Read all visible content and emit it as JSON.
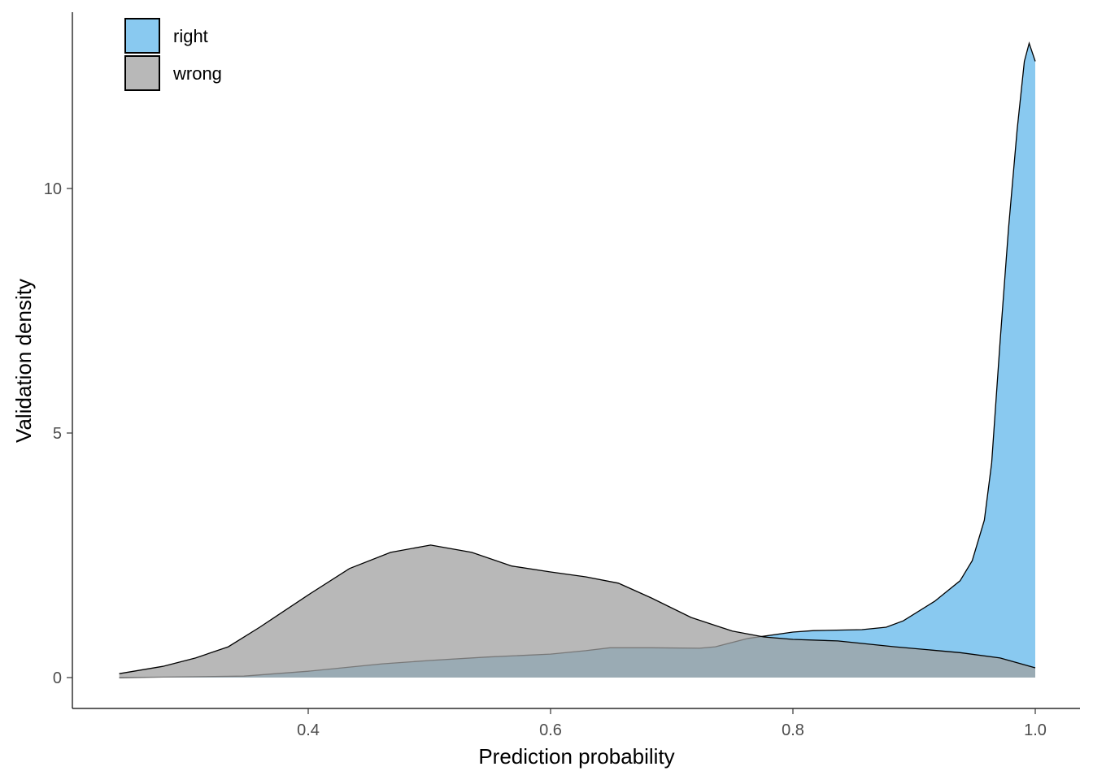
{
  "chart_data": {
    "type": "area",
    "title": "",
    "xlabel": "Prediction probability",
    "ylabel": "Validation density",
    "xlim": [
      0.21,
      1.02
    ],
    "ylim": [
      -0.63,
      13.6
    ],
    "x_ticks": [
      0.4,
      0.6,
      0.8,
      1.0
    ],
    "x_tick_labels": [
      "0.4",
      "0.6",
      "0.8",
      "1.0"
    ],
    "y_ticks": [
      0,
      5,
      10
    ],
    "y_tick_labels": [
      "0",
      "5",
      "10"
    ],
    "grid": false,
    "legend_position": "top-left",
    "series": [
      {
        "name": "right",
        "color": "#89c9f0",
        "x": [
          0.244,
          0.347,
          0.4,
          0.461,
          0.501,
          0.548,
          0.6,
          0.629,
          0.649,
          0.683,
          0.723,
          0.736,
          0.763,
          0.8,
          0.817,
          0.857,
          0.877,
          0.891,
          0.917,
          0.938,
          0.948,
          0.958,
          0.964,
          0.971,
          0.978,
          0.985,
          0.991,
          0.995,
          1.0
        ],
        "y": [
          0,
          0.03,
          0.13,
          0.28,
          0.35,
          0.42,
          0.48,
          0.55,
          0.61,
          0.61,
          0.6,
          0.63,
          0.8,
          0.93,
          0.96,
          0.98,
          1.03,
          1.16,
          1.56,
          1.98,
          2.39,
          3.22,
          4.39,
          6.88,
          9.2,
          11.2,
          12.6,
          12.97,
          12.6
        ]
      },
      {
        "name": "wrong",
        "color": "#a0a0a0",
        "x": [
          0.244,
          0.28,
          0.307,
          0.334,
          0.36,
          0.4,
          0.434,
          0.468,
          0.501,
          0.535,
          0.568,
          0.6,
          0.629,
          0.656,
          0.683,
          0.716,
          0.75,
          0.776,
          0.8,
          0.837,
          0.884,
          0.938,
          0.971,
          1.0
        ],
        "y": [
          0.08,
          0.23,
          0.4,
          0.63,
          1.03,
          1.69,
          2.23,
          2.56,
          2.71,
          2.56,
          2.28,
          2.16,
          2.06,
          1.93,
          1.63,
          1.23,
          0.95,
          0.83,
          0.78,
          0.75,
          0.63,
          0.51,
          0.4,
          0.2
        ]
      }
    ]
  }
}
